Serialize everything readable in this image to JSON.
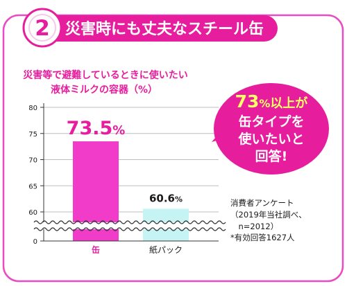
{
  "banner": {
    "number": "2",
    "title": "災害時にも丈夫なスチール缶"
  },
  "chart_data": {
    "type": "bar",
    "title_lines": [
      "災害等で避難しているときに使いたい",
      "液体ミルクの容器（%）"
    ],
    "categories": [
      "缶",
      "紙パック"
    ],
    "values": [
      73.5,
      60.6
    ],
    "value_labels": [
      {
        "number": "73.5",
        "unit": "%"
      },
      {
        "number": "60.6",
        "unit": "%"
      }
    ],
    "yticks": [
      "80",
      "75",
      "70",
      "65",
      "60",
      "0"
    ],
    "ylim": [
      0,
      80
    ],
    "axis_break": "between 0 and 60",
    "grid": true,
    "colors": {
      "缶": "#f03cc8",
      "紙パック": "#c6f3f3"
    }
  },
  "callout": {
    "percent": "73",
    "percent_unit": "%",
    "line1_tail": "以上が",
    "line2": "缶タイプを",
    "line3": "使いたいと",
    "line4": "回答!"
  },
  "survey_note": {
    "lines": [
      "消費者アンケート",
      "（2019年当社調べ、",
      "　n=2012）",
      "*有効回答1627人"
    ]
  },
  "colors": {
    "accent": "#e61e9e",
    "frame": "#e84bc3",
    "bar_can": "#f03cc8",
    "bar_carton": "#c6f3f3",
    "text_dark": "#1a1a1a"
  }
}
